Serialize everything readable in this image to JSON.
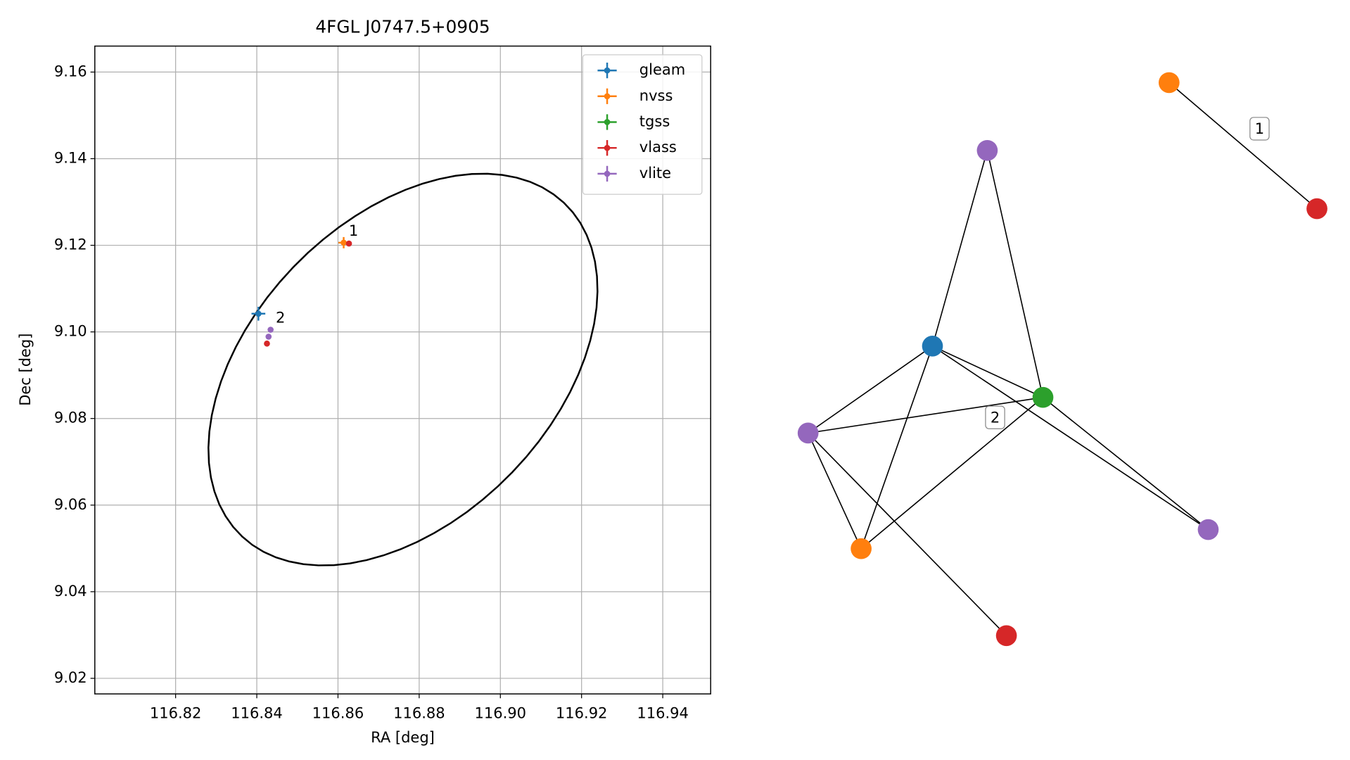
{
  "chart_data": {
    "type": "scatter",
    "title": "4FGL J0747.5+0905",
    "xlabel": "RA [deg]",
    "ylabel": "Dec [deg]",
    "xlim": [
      116.8001,
      116.9518
    ],
    "ylim": [
      9.0164,
      9.166
    ],
    "xticks": [
      116.82,
      116.84,
      116.86,
      116.88,
      {
        "value": 116.9,
        "label": "116.90"
      },
      116.92,
      116.94
    ],
    "yticks": [
      9.02,
      9.04,
      9.06,
      9.08,
      {
        "value": 9.1,
        "label": "9.10"
      },
      9.12,
      9.14,
      9.16
    ],
    "grid": true,
    "legend": "upper right",
    "series": [
      {
        "name": "gleam",
        "color": "#1f77b4",
        "x": [
          116.8404
        ],
        "y": [
          9.1042
        ],
        "xerr": [
          0.0017
        ],
        "yerr": [
          0.0016
        ]
      },
      {
        "name": "nvss",
        "color": "#ff7f0e",
        "x": [
          116.8614
        ],
        "y": [
          9.1206
        ],
        "xerr": [
          0.0013
        ],
        "yerr": [
          0.0013
        ]
      },
      {
        "name": "tgss",
        "color": "#2ca02c",
        "x": [],
        "y": [],
        "xerr": [],
        "yerr": []
      },
      {
        "name": "vlass",
        "color": "#d62728",
        "x": [
          116.8627,
          116.8425
        ],
        "y": [
          9.1204,
          9.0973
        ],
        "xerr": [
          0.0002,
          0.0002
        ],
        "yerr": [
          0.0002,
          0.0002
        ]
      },
      {
        "name": "vlite",
        "color": "#9467bd",
        "x": [
          116.8434,
          116.8429
        ],
        "y": [
          9.1005,
          9.0989
        ],
        "xerr": [
          0.0003,
          0.0003
        ],
        "yerr": [
          0.0003,
          0.0003
        ]
      }
    ],
    "ellipse": {
      "center": [
        116.876,
        9.0913
      ],
      "semi_major": 0.0554,
      "semi_minor": 0.0357,
      "angle": 41,
      "color": "#000000"
    },
    "annotations": [
      {
        "text": "1",
        "x": 116.8614,
        "y": 9.1206
      },
      {
        "text": "2",
        "x": 116.8434,
        "y": 9.1005
      }
    ]
  },
  "graph": {
    "nodes": [
      {
        "color": "#1f77b4"
      },
      {
        "color": "#2ca02c"
      },
      {
        "color": "#9467bd"
      },
      {
        "color": "#9467bd"
      },
      {
        "color": "#9467bd"
      },
      {
        "color": "#ff7f0e"
      },
      {
        "color": "#d62728"
      },
      {
        "color": "#ff7f0e"
      },
      {
        "color": "#d62728"
      }
    ],
    "edges": [
      [
        2,
        0
      ],
      [
        2,
        1
      ],
      [
        0,
        1
      ],
      [
        0,
        3
      ],
      [
        0,
        5
      ],
      [
        0,
        4
      ],
      [
        1,
        3
      ],
      [
        1,
        5
      ],
      [
        1,
        4
      ],
      [
        3,
        5
      ],
      [
        3,
        6
      ],
      [
        7,
        8
      ]
    ],
    "labels": [
      {
        "text": "1"
      },
      {
        "text": "2"
      }
    ]
  }
}
